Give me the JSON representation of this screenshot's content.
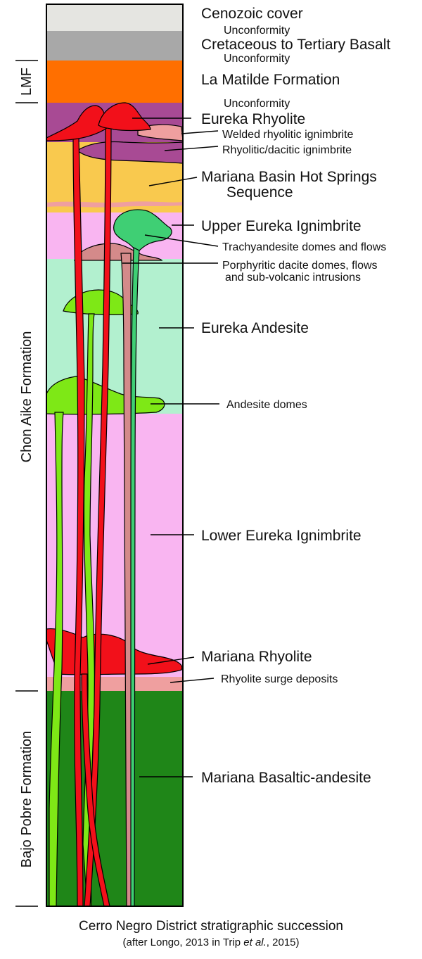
{
  "colors": {
    "cenozoic": "#e5e5e1",
    "basalt": "#a8a8a8",
    "la_matilde": "#ff6f00",
    "eureka_rhyolite": "#a84a94",
    "welded_ignimbrite": "#ef9f9f",
    "hot_springs": "#f9c94e",
    "upper_ignimbrite": "#f9b5f1",
    "trachyandesite": "#3fcf74",
    "porphyritic_dacite": "#d48a8a",
    "eureka_andesite": "#b2f0cf",
    "andesite_domes": "#7ee816",
    "lower_ignimbrite": "#f9b5f1",
    "mariana_rhyolite": "#f2101a",
    "basaltic_andesite": "#1f8618"
  },
  "units": {
    "cenozoic": "Cenozoic cover",
    "unconformity_1": "Unconformity",
    "basalt": "Cretaceous to Tertiary Basalt",
    "unconformity_2": "Unconformity",
    "la_matilde": "La Matilde Formation",
    "unconformity_3": "Unconformity",
    "eureka_rhyolite": "Eureka Rhyolite",
    "welded_ignimbrite": "Welded rhyolitic ignimbrite",
    "rhyolitic_dacitic": "Rhyolitic/dacitic ignimbrite",
    "hot_springs_1": "Mariana Basin Hot Springs",
    "hot_springs_2": "Sequence",
    "upper_ignimbrite": "Upper Eureka Ignimbrite",
    "trachyandesite": "Trachyandesite domes and flows",
    "porphyritic_1": "Porphyritic dacite domes, flows",
    "porphyritic_2": "and sub-volcanic intrusions",
    "eureka_andesite": "Eureka Andesite",
    "andesite_domes": "Andesite domes",
    "lower_ignimbrite": "Lower Eureka Ignimbrite",
    "mariana_rhyolite": "Mariana Rhyolite",
    "surge_deposits": "Rhyolite surge deposits",
    "basaltic_andesite": "Mariana Basaltic-andesite"
  },
  "formations": {
    "lmf": "LMF",
    "chon_aike": "Chon Aike Formation",
    "bajo_pobre": "Bajo Pobre Formation"
  },
  "caption": {
    "title": "Cerro Negro District stratigraphic succession",
    "source_prefix": "(after Longo, 2013 in Trip ",
    "source_etal": "et al.",
    "source_suffix": ", 2015)"
  }
}
